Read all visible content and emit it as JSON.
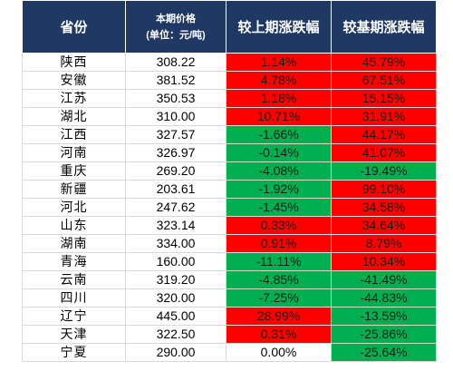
{
  "table": {
    "header": {
      "province": "省份",
      "price_line1": "本期价格",
      "price_line2": "(单位：元/吨)",
      "mom": "较上期涨跌幅",
      "yoy": "较基期涨跌幅"
    },
    "colors": {
      "header_bg": "#1f3864",
      "increase": "#ff0000",
      "decrease": "#00b050"
    },
    "rows": [
      {
        "province": "陕西",
        "price": "308.22",
        "mom": "1.14%",
        "mom_dir": "up",
        "yoy": "45.79%",
        "yoy_dir": "up"
      },
      {
        "province": "安徽",
        "price": "381.52",
        "mom": "4.78%",
        "mom_dir": "up",
        "yoy": "67.51%",
        "yoy_dir": "up"
      },
      {
        "province": "江苏",
        "price": "350.53",
        "mom": "1.18%",
        "mom_dir": "up",
        "yoy": "15.15%",
        "yoy_dir": "up"
      },
      {
        "province": "湖北",
        "price": "310.00",
        "mom": "10.71%",
        "mom_dir": "up",
        "yoy": "31.91%",
        "yoy_dir": "up"
      },
      {
        "province": "江西",
        "price": "327.57",
        "mom": "-1.66%",
        "mom_dir": "down",
        "yoy": "44.17%",
        "yoy_dir": "up"
      },
      {
        "province": "河南",
        "price": "326.97",
        "mom": "-0.14%",
        "mom_dir": "down",
        "yoy": "41.07%",
        "yoy_dir": "up"
      },
      {
        "province": "重庆",
        "price": "269.20",
        "mom": "-4.08%",
        "mom_dir": "down",
        "yoy": "-19.49%",
        "yoy_dir": "down"
      },
      {
        "province": "新疆",
        "price": "203.61",
        "mom": "-1.92%",
        "mom_dir": "down",
        "yoy": "99.10%",
        "yoy_dir": "up"
      },
      {
        "province": "河北",
        "price": "247.62",
        "mom": "-1.45%",
        "mom_dir": "down",
        "yoy": "34.58%",
        "yoy_dir": "up"
      },
      {
        "province": "山东",
        "price": "323.14",
        "mom": "0.33%",
        "mom_dir": "up",
        "yoy": "34.64%",
        "yoy_dir": "up"
      },
      {
        "province": "湖南",
        "price": "334.00",
        "mom": "0.91%",
        "mom_dir": "up",
        "yoy": "8.79%",
        "yoy_dir": "up"
      },
      {
        "province": "青海",
        "price": "160.00",
        "mom": "-11.11%",
        "mom_dir": "down",
        "yoy": "10.34%",
        "yoy_dir": "up"
      },
      {
        "province": "云南",
        "price": "319.20",
        "mom": "-4.85%",
        "mom_dir": "down",
        "yoy": "-41.49%",
        "yoy_dir": "down"
      },
      {
        "province": "四川",
        "price": "320.00",
        "mom": "-7.25%",
        "mom_dir": "down",
        "yoy": "-44.83%",
        "yoy_dir": "down"
      },
      {
        "province": "辽宁",
        "price": "445.00",
        "mom": "28.99%",
        "mom_dir": "up",
        "yoy": "-13.59%",
        "yoy_dir": "down"
      },
      {
        "province": "天津",
        "price": "322.50",
        "mom": "0.31%",
        "mom_dir": "up",
        "yoy": "-25.86%",
        "yoy_dir": "down"
      },
      {
        "province": "宁夏",
        "price": "290.00",
        "mom": "0.00%",
        "mom_dir": "flat",
        "yoy": "-25.64%",
        "yoy_dir": "down"
      }
    ]
  }
}
